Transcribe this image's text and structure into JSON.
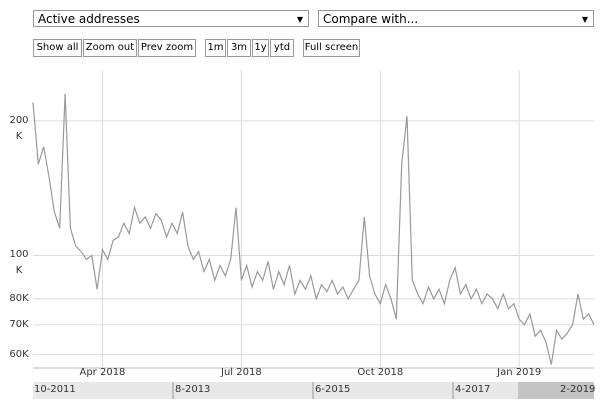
{
  "controls": {
    "compare": "Compare with...",
    "buttons": [
      "Show all",
      "Zoom out",
      "Prev zoom",
      "1m",
      "3m",
      "1y",
      "ytd",
      "Full screen"
    ]
  },
  "navigator": {
    "labels": [
      "10-2011",
      "8-2013",
      "6-2015",
      "4-2017",
      "2-2019"
    ]
  },
  "chart_data": {
    "type": "line",
    "log_y": true,
    "grid": true,
    "categories": [
      null,
      null,
      null,
      null,
      null,
      null,
      null,
      null,
      null,
      null,
      null,
      null,
      null,
      "Apr 2018",
      null,
      null,
      null,
      null,
      null,
      null,
      null,
      null,
      null,
      null,
      null,
      null,
      null,
      null,
      null,
      null,
      null,
      null,
      null,
      null,
      null,
      null,
      null,
      null,
      null,
      "Jul 2018",
      null,
      null,
      null,
      null,
      null,
      null,
      null,
      null,
      null,
      null,
      null,
      null,
      null,
      null,
      null,
      null,
      null,
      null,
      null,
      null,
      null,
      null,
      null,
      null,
      null,
      "Oct 2018",
      null,
      null,
      null,
      null,
      null,
      null,
      null,
      null,
      null,
      null,
      null,
      null,
      null,
      null,
      null,
      null,
      null,
      null,
      null,
      null,
      null,
      null,
      null,
      null,
      null,
      "Jan 2019",
      null,
      null,
      null,
      null,
      null,
      null,
      null,
      null,
      null,
      null,
      null,
      null,
      null,
      null
    ],
    "series": [
      {
        "name": "Active addresses",
        "color": "#999999",
        "values": [
          220000,
          160000,
          175000,
          150000,
          125000,
          115000,
          230000,
          115000,
          105000,
          102000,
          98000,
          100000,
          84000,
          103000,
          98000,
          108000,
          110000,
          118000,
          112000,
          128000,
          118000,
          122000,
          115000,
          124000,
          120000,
          110000,
          118000,
          112000,
          125000,
          105000,
          98000,
          102000,
          92000,
          98000,
          88000,
          95000,
          90000,
          98000,
          128000,
          88000,
          95000,
          85000,
          92000,
          88000,
          97000,
          84000,
          92000,
          86000,
          95000,
          82000,
          88000,
          84000,
          90000,
          80000,
          86000,
          83000,
          88000,
          82000,
          85000,
          80000,
          84000,
          88000,
          122000,
          90000,
          82000,
          78000,
          86000,
          80000,
          72000,
          160000,
          205000,
          88000,
          82000,
          78000,
          85000,
          80000,
          84000,
          78000,
          88000,
          94000,
          82000,
          86000,
          80000,
          84000,
          78000,
          82000,
          80000,
          76000,
          82000,
          76000,
          78000,
          72000,
          70000,
          74000,
          66000,
          68000,
          64000,
          57000,
          68000,
          65000,
          67000,
          70000,
          82000,
          72000,
          74000,
          70000
        ]
      }
    ],
    "ylim": [
      56000,
      260000
    ],
    "yticks": [
      {
        "value": 60000,
        "label": "60K"
      },
      {
        "value": 70000,
        "label": "70K"
      },
      {
        "value": 80000,
        "label": "80K"
      },
      {
        "value": 100000,
        "label": "100 K"
      },
      {
        "value": 200000,
        "label": "200 K"
      }
    ]
  }
}
